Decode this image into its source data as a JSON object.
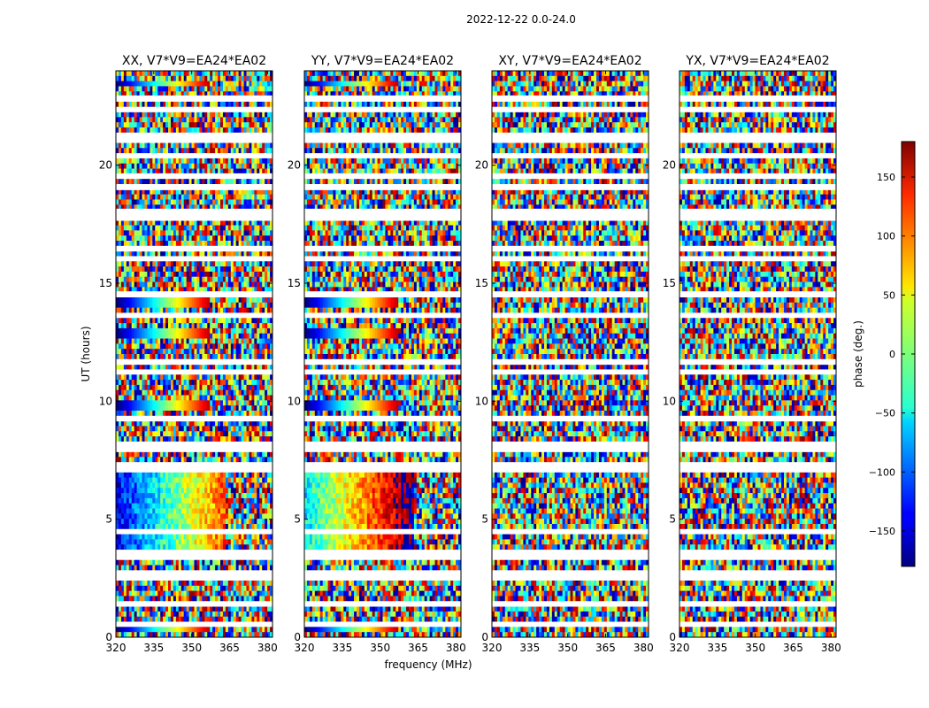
{
  "figure": {
    "suptitle": "2022-12-22 0.0-24.0"
  },
  "chart_data": {
    "type": "heatmap",
    "xlabel": "frequency (MHz)",
    "ylabel": "UT (hours)",
    "xlim": [
      320,
      382
    ],
    "ylim": [
      0,
      24
    ],
    "x_ticks": [
      320,
      335,
      350,
      365,
      380
    ],
    "y_ticks": [
      0,
      5,
      10,
      15,
      20
    ],
    "colorbar": {
      "label": "phase (deg.)",
      "range": [
        -180,
        180
      ],
      "ticks": [
        -150,
        -100,
        -50,
        0,
        50,
        100,
        150
      ],
      "colormap": "jet"
    },
    "panels": [
      {
        "title": "XX, V7*V9=EA24*EA02",
        "coherent_phase": true
      },
      {
        "title": "YY, V7*V9=EA24*EA02",
        "coherent_phase": true
      },
      {
        "title": "XY, V7*V9=EA24*EA02",
        "coherent_phase": false
      },
      {
        "title": "YX, V7*V9=EA24*EA02",
        "coherent_phase": false
      }
    ],
    "flagged_time_bands_hours": [
      0.6,
      1.35,
      2.55,
      2.65,
      3.35,
      3.55,
      4.5,
      7.2,
      7.9,
      8.2,
      9.2,
      11.25,
      11.6,
      13.6,
      14.6,
      16.0,
      16.4,
      17.7,
      18.1,
      19.0,
      19.6,
      20.4,
      21.0,
      21.2,
      22.3,
      22.9
    ]
  }
}
